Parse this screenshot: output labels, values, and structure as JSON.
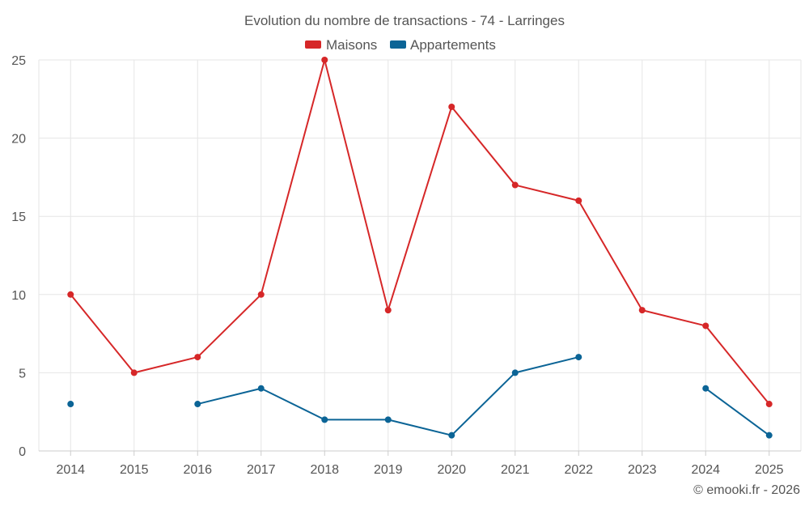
{
  "chart_data": {
    "type": "line",
    "title": "Evolution du nombre de transactions - 74 - Larringes",
    "categories": [
      "2014",
      "2015",
      "2016",
      "2017",
      "2018",
      "2019",
      "2020",
      "2021",
      "2022",
      "2023",
      "2024",
      "2025"
    ],
    "series": [
      {
        "name": "Maisons",
        "color": "#d62728",
        "values": [
          10,
          5,
          6,
          10,
          25,
          9,
          22,
          17,
          16,
          9,
          8,
          3
        ]
      },
      {
        "name": "Appartements",
        "color": "#0b6496",
        "values": [
          3,
          null,
          3,
          4,
          2,
          2,
          1,
          5,
          6,
          null,
          4,
          1
        ]
      }
    ],
    "ylim": [
      0,
      25
    ],
    "yticks": [
      0,
      5,
      10,
      15,
      20,
      25
    ],
    "grid": true,
    "legend_position": "top-center",
    "xlabel": "",
    "ylabel": ""
  },
  "footer": "© emooki.fr - 2026"
}
